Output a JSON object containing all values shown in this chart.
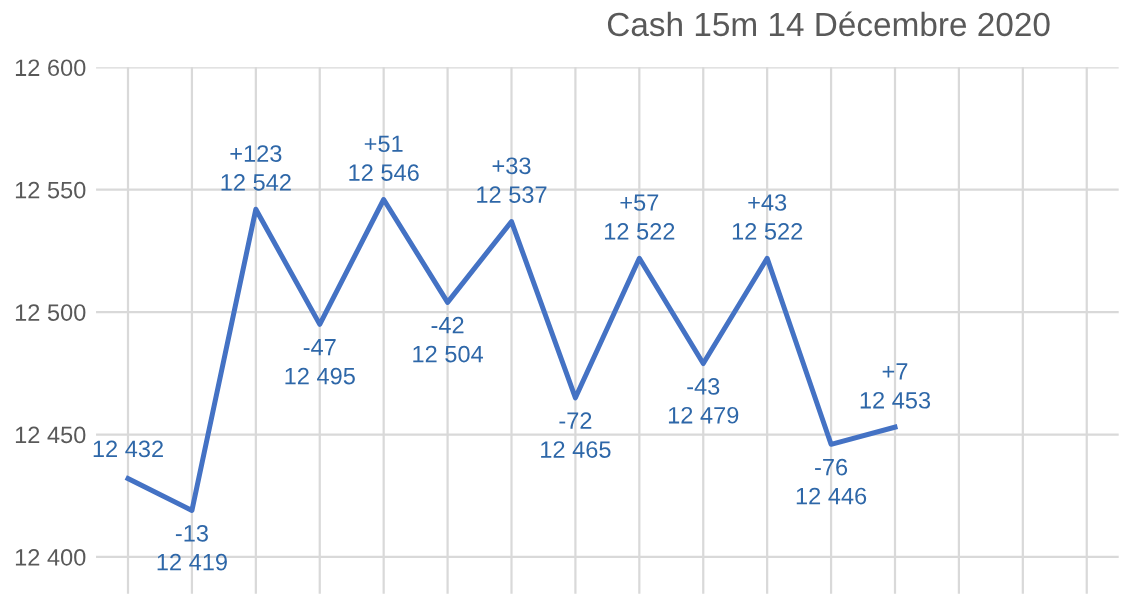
{
  "chart_data": {
    "type": "line",
    "title": "Cash 15m 14 Décembre 2020",
    "categories": [
      null,
      null,
      null,
      null,
      null,
      null,
      null,
      null,
      null,
      null,
      null,
      null,
      null,
      null,
      null,
      null
    ],
    "series": [
      {
        "color": "#4472c4",
        "values": [
          12432,
          12419,
          12542,
          12495,
          12546,
          12504,
          12537,
          12465,
          12522,
          12479,
          12522,
          12446,
          12453,
          null,
          null,
          null
        ],
        "value_labels": [
          "12 432",
          "-13\n12 419",
          "+123\n12 542",
          "-47\n12 495",
          "+51\n12 546",
          "-42\n12 504",
          "+33\n12 537",
          "-72\n12 465",
          "+57\n12 522",
          "-43\n12 479",
          "+43\n12 522",
          "-76\n12 446",
          "+7\n12 453",
          null,
          null,
          null
        ]
      }
    ],
    "ylim": [
      12385,
      12600
    ],
    "yticks": [
      {
        "value": 12400,
        "label": "12 400"
      },
      {
        "value": 12450,
        "label": "12 450"
      },
      {
        "value": 12500,
        "label": "12 500"
      },
      {
        "value": 12550,
        "label": "12 550"
      },
      {
        "value": 12600,
        "label": "12 600"
      }
    ],
    "grid": true,
    "legend": false,
    "marker": "none",
    "line_style": "solid"
  }
}
